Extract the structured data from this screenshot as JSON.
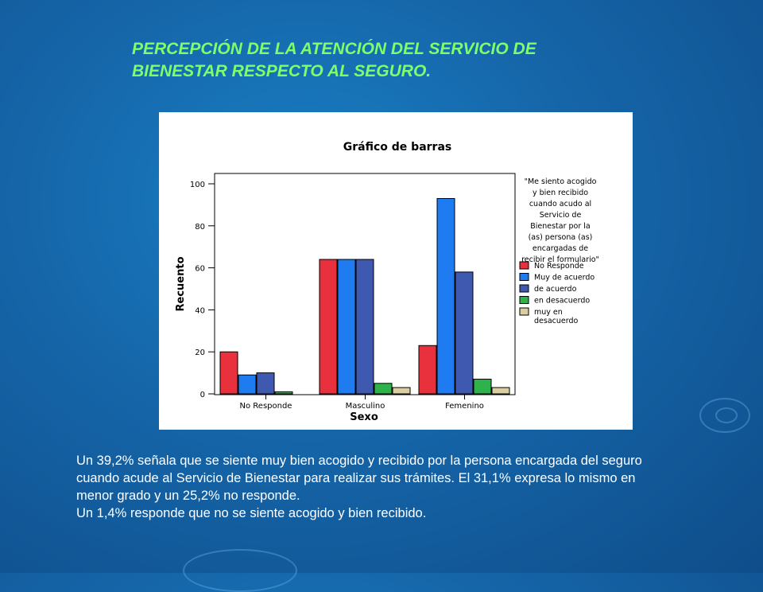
{
  "slide": {
    "title_lines": [
      "PERCEPCIÓN DE LA ATENCIÓN DEL SERVICIO DE",
      "BIENESTAR  RESPECTO AL SEGURO."
    ],
    "caption_lines": [
      "Un 39,2% señala que se siente muy bien acogido y  recibido por la persona encargada del seguro",
      "cuando acude al Servicio de Bienestar para realizar sus trámites. El 31,1% expresa lo mismo en",
      "menor grado y un 25,2% no responde.",
      "Un 1,4% responde que no se siente acogido y bien recibido."
    ],
    "colors": {
      "title": "#7dff6a",
      "caption": "#ffffff",
      "background": "#1565a8"
    }
  },
  "chart_data": {
    "type": "bar",
    "title": "Gráfico de barras",
    "xlabel": "Sexo",
    "ylabel": "Recuento",
    "categories": [
      "No Responde",
      "Masculino",
      "Femenino"
    ],
    "ylim": [
      0,
      100
    ],
    "yticks": [
      0,
      20,
      40,
      60,
      80,
      100
    ],
    "legend_title_lines": [
      "\"Me siento acogido",
      "y bien recibido",
      "cuando acudo al",
      "Servicio de",
      "Bienestar por la",
      "(as) persona (as)",
      "encargadas de",
      "recibir el formulario\""
    ],
    "legend_position": "right",
    "series": [
      {
        "name": "No Responde",
        "color": "#e8313d",
        "values": [
          20,
          64,
          23
        ]
      },
      {
        "name": "Muy de acuerdo",
        "color": "#1e7cf0",
        "values": [
          9,
          64,
          93
        ]
      },
      {
        "name": "de acuerdo",
        "color": "#3f59b0",
        "values": [
          10,
          64,
          58
        ]
      },
      {
        "name": "en desacuerdo",
        "color": "#2db34a",
        "values": [
          1,
          5,
          7
        ]
      },
      {
        "name": "muy en desacuerdo",
        "name_lines": [
          "muy en",
          "desacuerdo"
        ],
        "color": "#d9cfa0",
        "values": [
          0,
          3,
          3
        ]
      }
    ]
  }
}
